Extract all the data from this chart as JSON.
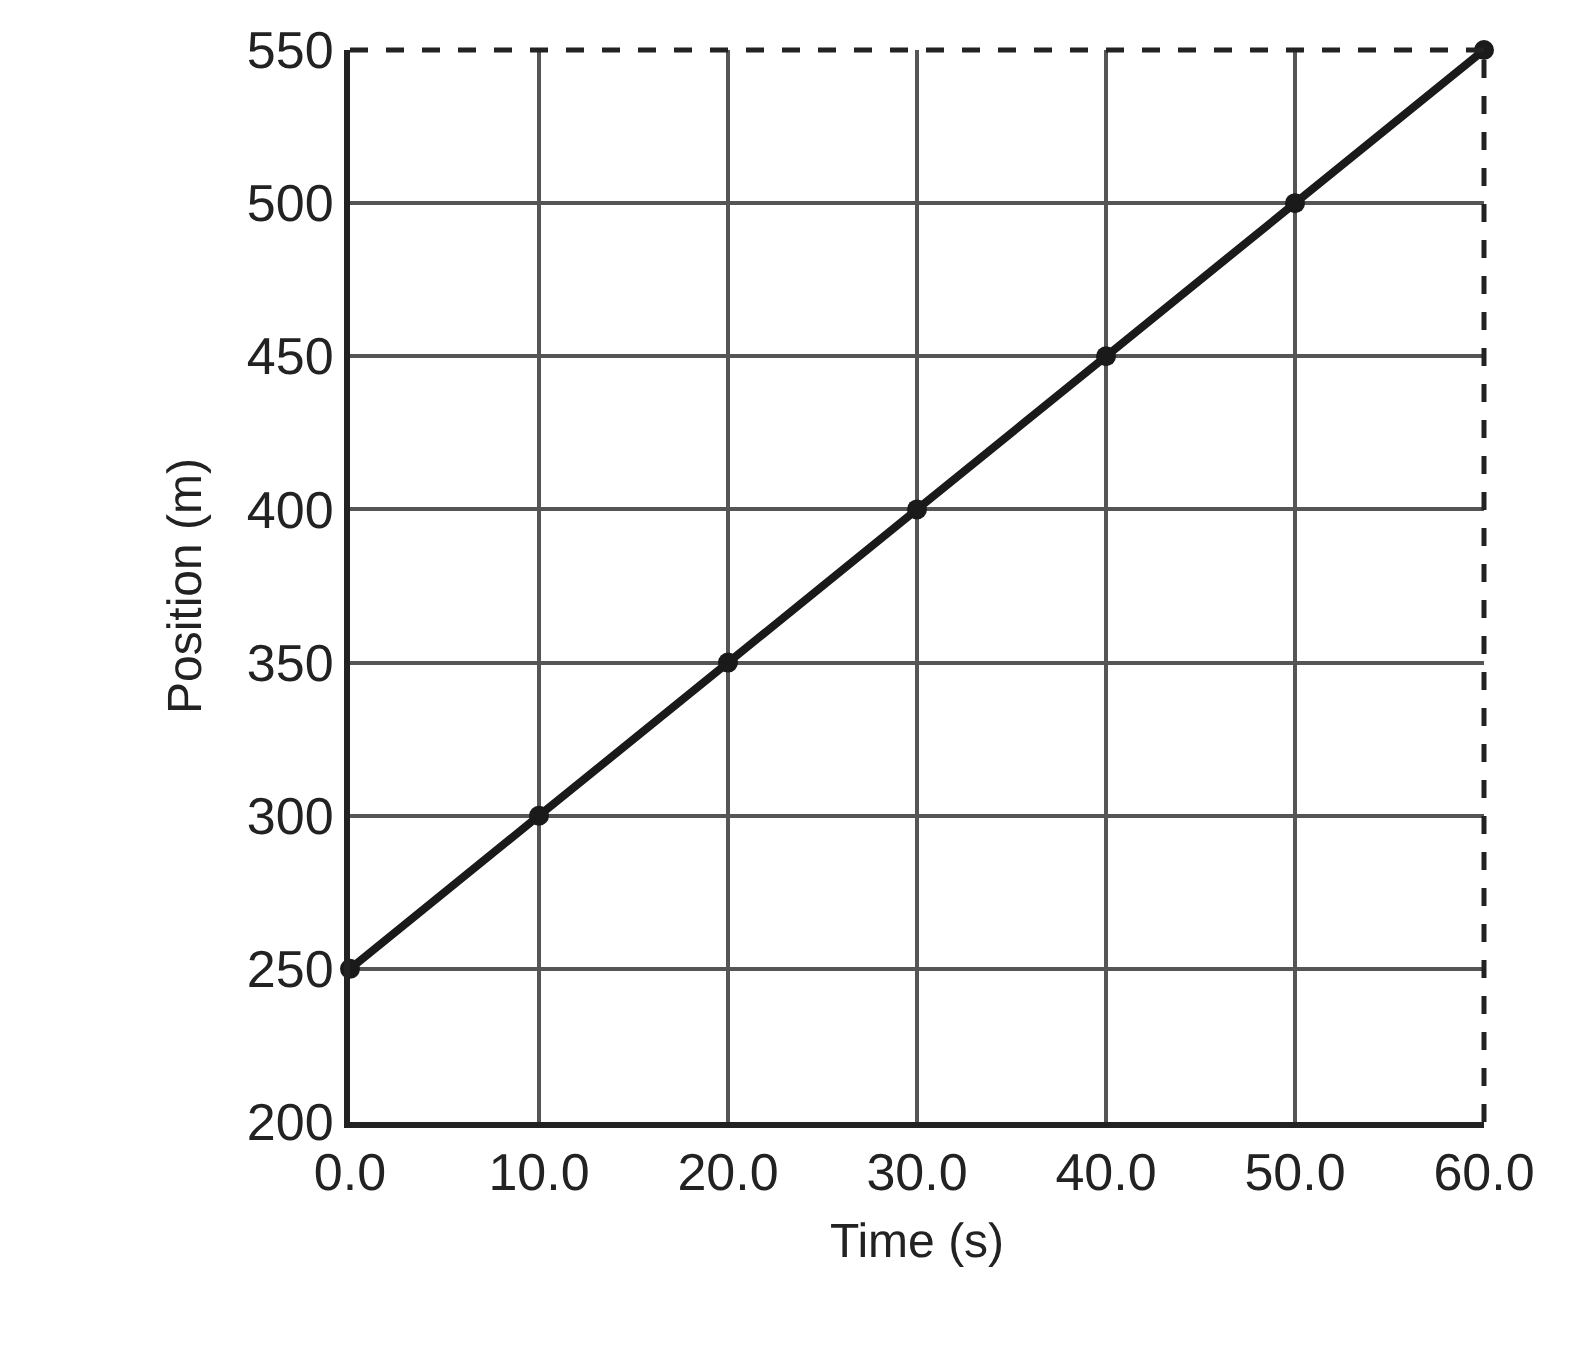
{
  "chart_data": {
    "type": "line",
    "xlabel": "Time (s)",
    "ylabel": "Position (m)",
    "x": [
      0,
      10,
      20,
      30,
      40,
      50,
      60
    ],
    "series": [
      {
        "color": "#1a1a1a",
        "values": [
          250,
          300,
          350,
          400,
          450,
          500,
          550
        ]
      }
    ],
    "xlim": [
      0,
      60
    ],
    "ylim": [
      200,
      550
    ],
    "xticks": [
      {
        "value": 0,
        "label": "0.0"
      },
      {
        "value": 10,
        "label": "10.0"
      },
      {
        "value": 20,
        "label": "20.0"
      },
      {
        "value": 30,
        "label": "30.0"
      },
      {
        "value": 40,
        "label": "40.0"
      },
      {
        "value": 50,
        "label": "50.0"
      },
      {
        "value": 60,
        "label": "60.0"
      }
    ],
    "yticks": [
      200,
      250,
      300,
      350,
      400,
      450,
      500,
      550
    ],
    "grid": true,
    "marker": "circle",
    "line_style": "solid"
  }
}
